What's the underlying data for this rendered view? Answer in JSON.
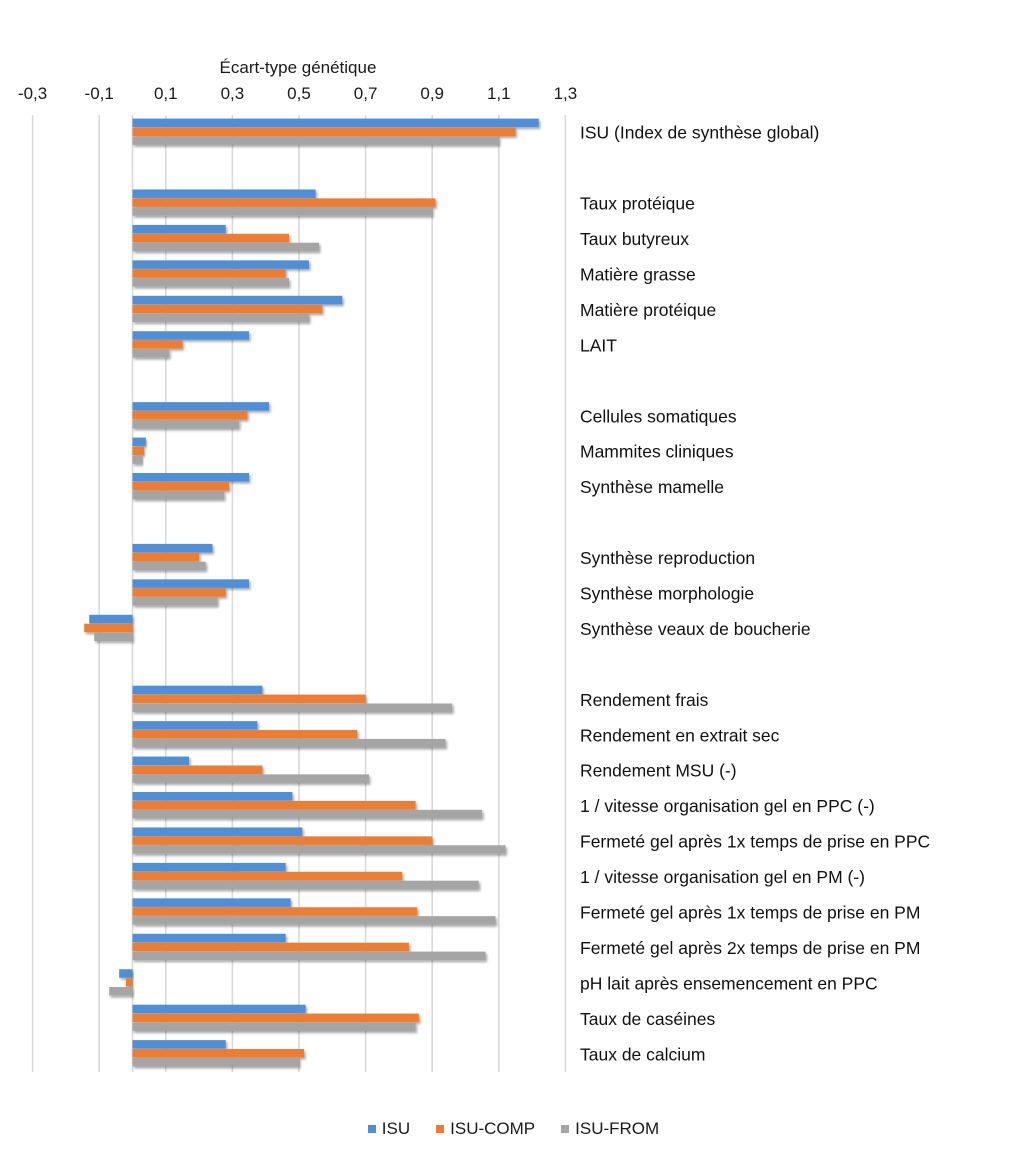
{
  "chart_data": {
    "type": "bar",
    "orientation": "horizontal",
    "title": "",
    "xlabel": "Écart-type génétique",
    "ylabel": "",
    "xlim": [
      -0.3,
      1.3
    ],
    "xticks": [
      -0.3,
      -0.1,
      0.1,
      0.3,
      0.5,
      0.7,
      0.9,
      1.1,
      1.3
    ],
    "xtick_labels": [
      "-0,3",
      "-0,1",
      "0,1",
      "0,3",
      "0,5",
      "0,7",
      "0,9",
      "1,1",
      "1,3"
    ],
    "xaxis_position": "top",
    "grid": true,
    "legend_position": "bottom",
    "categories": [
      "ISU (Index de synthèse global)",
      "",
      "Taux protéique",
      "Taux butyreux",
      "Matière grasse",
      "Matière protéique",
      "LAIT",
      "",
      "Cellules somatiques",
      "Mammites cliniques",
      "Synthèse mamelle",
      "",
      "Synthèse reproduction",
      "Synthèse morphologie",
      "Synthèse veaux de boucherie",
      "",
      "Rendement frais",
      "Rendement en extrait sec",
      "Rendement MSU (-)",
      "1 / vitesse organisation gel en PPC (-)",
      "Fermeté gel après 1x temps de prise en PPC",
      "1 / vitesse organisation gel en PM (-)",
      "Fermeté gel après 1x temps de prise en PM",
      "Fermeté gel après 2x temps de prise en PM",
      "pH lait après ensemencement en PPC",
      "Taux de caséines",
      "Taux de calcium"
    ],
    "series": [
      {
        "name": "ISU",
        "color": "#4f8fd8",
        "values": [
          1.22,
          null,
          0.55,
          0.28,
          0.53,
          0.63,
          0.35,
          null,
          0.41,
          0.04,
          0.35,
          null,
          0.24,
          0.35,
          -0.13,
          null,
          0.39,
          0.375,
          0.17,
          0.48,
          0.51,
          0.46,
          0.475,
          0.46,
          -0.04,
          0.52,
          0.28
        ]
      },
      {
        "name": "ISU-COMP",
        "color": "#ed7d31",
        "values": [
          1.15,
          null,
          0.91,
          0.47,
          0.46,
          0.57,
          0.15,
          null,
          0.345,
          0.035,
          0.29,
          null,
          0.2,
          0.28,
          -0.145,
          null,
          0.7,
          0.675,
          0.39,
          0.85,
          0.9,
          0.81,
          0.855,
          0.83,
          -0.02,
          0.86,
          0.515
        ]
      },
      {
        "name": "ISU-FROM",
        "color": "#a5a5a5",
        "values": [
          1.1,
          null,
          0.9,
          0.56,
          0.47,
          0.53,
          0.11,
          null,
          0.32,
          0.03,
          0.275,
          null,
          0.22,
          0.255,
          -0.115,
          null,
          0.96,
          0.94,
          0.71,
          1.05,
          1.12,
          1.04,
          1.09,
          1.06,
          -0.07,
          0.85,
          0.5
        ]
      }
    ]
  },
  "colors": {
    "grid": "#d9d9d9",
    "zero_line": "#d9d9d9"
  }
}
